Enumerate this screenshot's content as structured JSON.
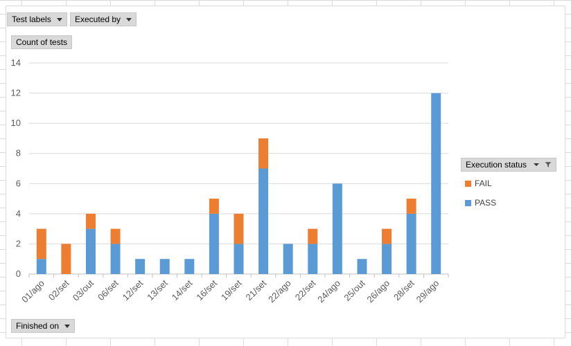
{
  "filters": {
    "test_labels": "Test labels",
    "executed_by": "Executed by",
    "count_label": "Count of tests",
    "finished_on": "Finished on"
  },
  "legend": {
    "header": "Execution status",
    "items": [
      {
        "name": "FAIL",
        "color": "#ed7d31"
      },
      {
        "name": "PASS",
        "color": "#5b9bd5"
      }
    ]
  },
  "chart_data": {
    "type": "bar",
    "stacked": true,
    "categories": [
      "01/ago",
      "02/set",
      "03/out",
      "06/set",
      "12/set",
      "13/set",
      "14/set",
      "16/set",
      "19/set",
      "21/set",
      "22/ago",
      "22/set",
      "24/ago",
      "25/out",
      "26/ago",
      "28/set",
      "29/ago"
    ],
    "series": [
      {
        "name": "PASS",
        "color": "#5b9bd5",
        "values": [
          1,
          0,
          3,
          2,
          1,
          1,
          1,
          4,
          2,
          7,
          2,
          2,
          6,
          1,
          2,
          4,
          12
        ]
      },
      {
        "name": "FAIL",
        "color": "#ed7d31",
        "values": [
          2,
          2,
          1,
          1,
          0,
          0,
          0,
          1,
          2,
          2,
          0,
          1,
          0,
          0,
          1,
          1,
          0
        ]
      }
    ],
    "ylim": [
      0,
      14
    ],
    "yticks": [
      0,
      2,
      4,
      6,
      8,
      10,
      12,
      14
    ],
    "grid": true,
    "legend_position": "right"
  }
}
